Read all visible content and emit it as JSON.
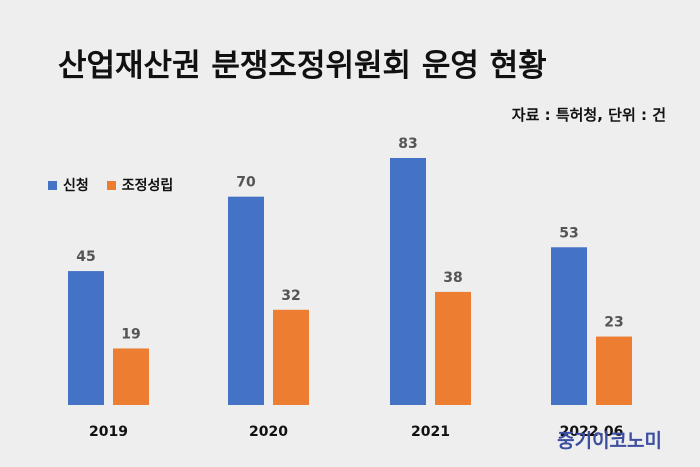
{
  "title": "산업재산권 분쟁조정위원회 운영 현황",
  "source": "자료 :  특허청, 단위 : 건",
  "watermark": "중기이코노미",
  "colors": {
    "apply": "#4472c4",
    "settle": "#ed7d31",
    "text": "#111111",
    "label": "#555555"
  },
  "chart_data": {
    "type": "bar",
    "categories": [
      "2019",
      "2020",
      "2021",
      "2022.06"
    ],
    "series": [
      {
        "name": "신청",
        "values": [
          45,
          70,
          83,
          53
        ],
        "color": "#4472c4"
      },
      {
        "name": "조정성립",
        "values": [
          19,
          32,
          38,
          23
        ],
        "color": "#ed7d31"
      }
    ],
    "ylim": [
      0,
      83
    ],
    "grid": false,
    "legend": "top-left"
  }
}
